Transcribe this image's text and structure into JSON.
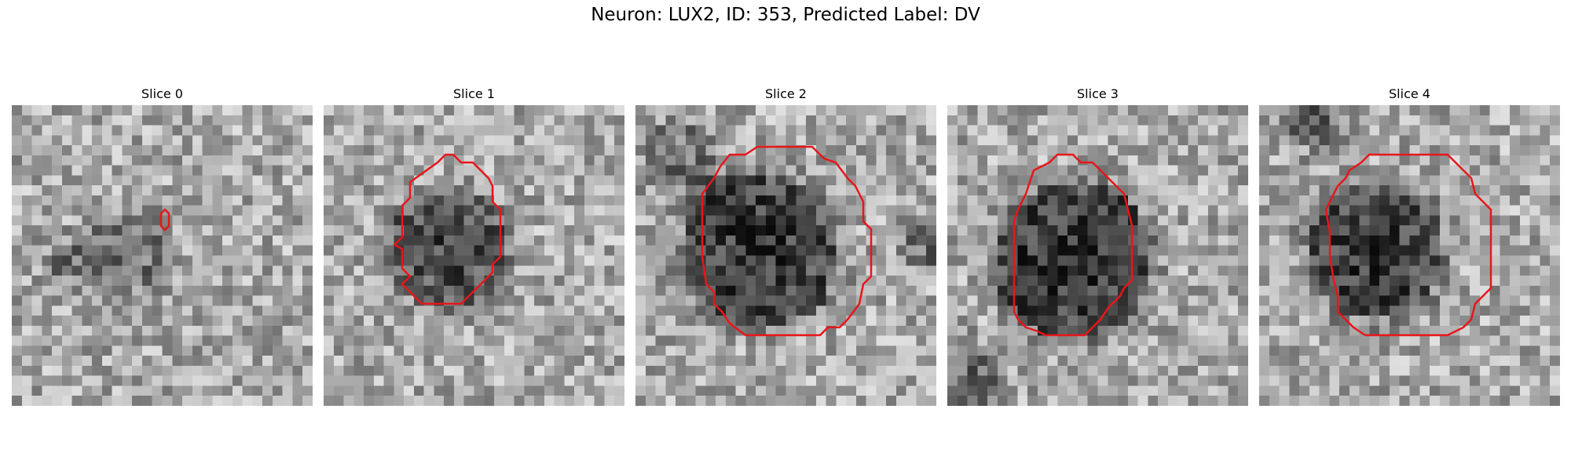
{
  "figure": {
    "title": "Neuron: LUX2, ID: 353, Predicted Label: DV"
  },
  "colors": {
    "contour": "#e8161a",
    "background": "#ffffff",
    "text": "#000000"
  },
  "panels": [
    {
      "title": "Slice 0"
    },
    {
      "title": "Slice 1"
    },
    {
      "title": "Slice 2"
    },
    {
      "title": "Slice 3"
    },
    {
      "title": "Slice 4"
    }
  ]
}
